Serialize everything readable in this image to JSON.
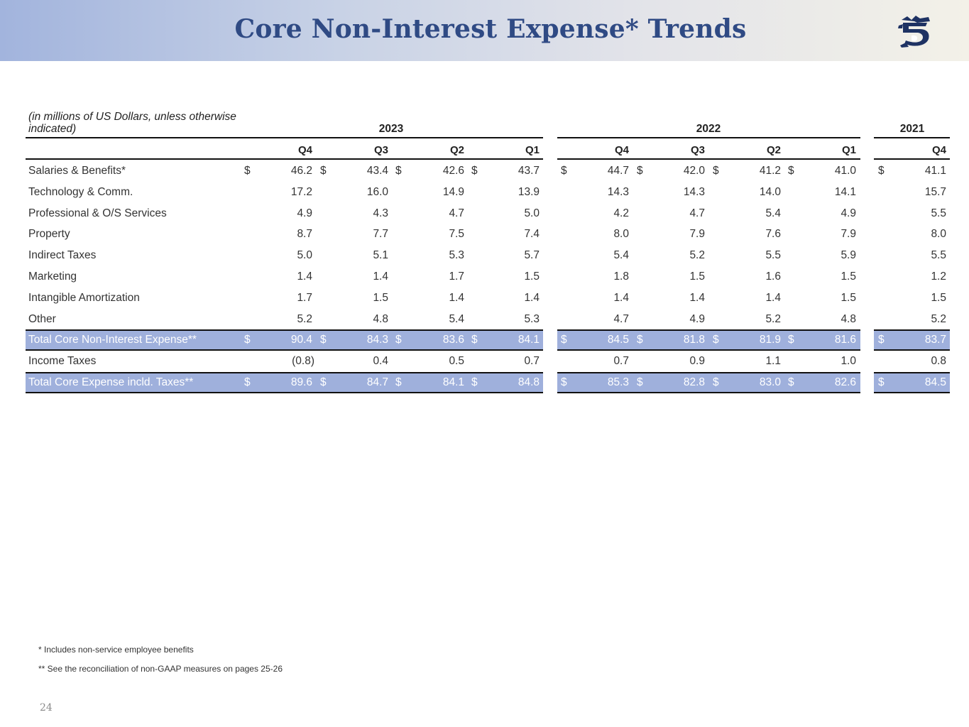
{
  "title": "Core Non-Interest Expense* Trends",
  "logo_icon": "stylized-lion-s-logo",
  "units_note": "(in millions of US Dollars, unless otherwise indicated)",
  "years": [
    "2023",
    "2022",
    "2021"
  ],
  "quarters": [
    "Q4",
    "Q3",
    "Q2",
    "Q1",
    "Q4",
    "Q3",
    "Q2",
    "Q1",
    "Q4"
  ],
  "dollar_sign": "$",
  "rows": [
    {
      "label": "Salaries & Benefits*",
      "dollar": true,
      "shaded": false,
      "values": [
        "46.2",
        "43.4",
        "42.6",
        "43.7",
        "44.7",
        "42.0",
        "41.2",
        "41.0",
        "41.1"
      ]
    },
    {
      "label": "Technology & Comm.",
      "dollar": false,
      "shaded": false,
      "values": [
        "17.2",
        "16.0",
        "14.9",
        "13.9",
        "14.3",
        "14.3",
        "14.0",
        "14.1",
        "15.7"
      ]
    },
    {
      "label": "Professional & O/S Services",
      "dollar": false,
      "shaded": false,
      "values": [
        "4.9",
        "4.3",
        "4.7",
        "5.0",
        "4.2",
        "4.7",
        "5.4",
        "4.9",
        "5.5"
      ]
    },
    {
      "label": "Property",
      "dollar": false,
      "shaded": false,
      "values": [
        "8.7",
        "7.7",
        "7.5",
        "7.4",
        "8.0",
        "7.9",
        "7.6",
        "7.9",
        "8.0"
      ]
    },
    {
      "label": "Indirect Taxes",
      "dollar": false,
      "shaded": false,
      "values": [
        "5.0",
        "5.1",
        "5.3",
        "5.7",
        "5.4",
        "5.2",
        "5.5",
        "5.9",
        "5.5"
      ]
    },
    {
      "label": "Marketing",
      "dollar": false,
      "shaded": false,
      "values": [
        "1.4",
        "1.4",
        "1.7",
        "1.5",
        "1.8",
        "1.5",
        "1.6",
        "1.5",
        "1.2"
      ]
    },
    {
      "label": "Intangible Amortization",
      "dollar": false,
      "shaded": false,
      "values": [
        "1.7",
        "1.5",
        "1.4",
        "1.4",
        "1.4",
        "1.4",
        "1.4",
        "1.5",
        "1.5"
      ]
    },
    {
      "label": "Other",
      "dollar": false,
      "shaded": false,
      "values": [
        "5.2",
        "4.8",
        "5.4",
        "5.3",
        "4.7",
        "4.9",
        "5.2",
        "4.8",
        "5.2"
      ]
    },
    {
      "label": "Total Core Non-Interest Expense**",
      "dollar": true,
      "shaded": true,
      "values": [
        "90.4",
        "84.3",
        "83.6",
        "84.1",
        "84.5",
        "81.8",
        "81.9",
        "81.6",
        "83.7"
      ]
    },
    {
      "label": "Income Taxes",
      "dollar": false,
      "shaded": false,
      "values": [
        "(0.8)",
        "0.4",
        "0.5",
        "0.7",
        "0.7",
        "0.9",
        "1.1",
        "1.0",
        "0.8"
      ]
    },
    {
      "label": "Total Core Expense incld. Taxes**",
      "dollar": true,
      "shaded": true,
      "values": [
        "89.6",
        "84.7",
        "84.1",
        "84.8",
        "85.3",
        "82.8",
        "83.0",
        "82.6",
        "84.5"
      ]
    }
  ],
  "footnotes": [
    "* Includes non-service employee benefits",
    "** See the reconciliation of non-GAAP measures on pages 25-26"
  ],
  "page_number": "24"
}
